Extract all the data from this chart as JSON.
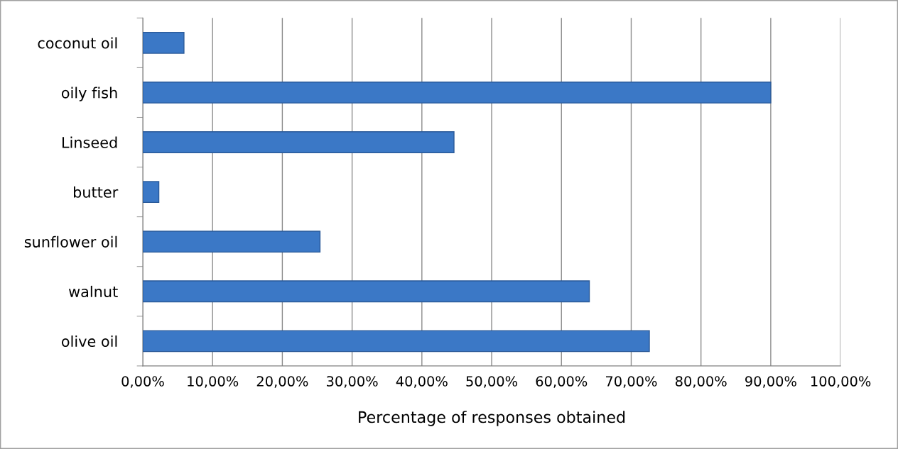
{
  "chart_data": {
    "type": "bar",
    "orientation": "horizontal",
    "xlabel": "Percentage of responses obtained",
    "categories": [
      "coconut oil",
      "oily fish",
      "Linseed",
      "butter",
      "sunflower oil",
      "walnut",
      "olive oil"
    ],
    "values": [
      5.9,
      90,
      44.6,
      2.3,
      25.4,
      64,
      72.6
    ],
    "color": "#3b78c6",
    "xlim": [
      0,
      100
    ],
    "xticks": [
      {
        "value": 0,
        "label": "0,00%"
      },
      {
        "value": 10,
        "label": "10,00%"
      },
      {
        "value": 20,
        "label": "20,00%"
      },
      {
        "value": 30,
        "label": "30,00%"
      },
      {
        "value": 40,
        "label": "40,00%"
      },
      {
        "value": 50,
        "label": "50,00%"
      },
      {
        "value": 60,
        "label": "60,00%"
      },
      {
        "value": 70,
        "label": "70,00%"
      },
      {
        "value": 80,
        "label": "80,00%"
      },
      {
        "value": 90,
        "label": "90,00%"
      },
      {
        "value": 100,
        "label": "100,00%"
      }
    ],
    "grid": "x"
  }
}
